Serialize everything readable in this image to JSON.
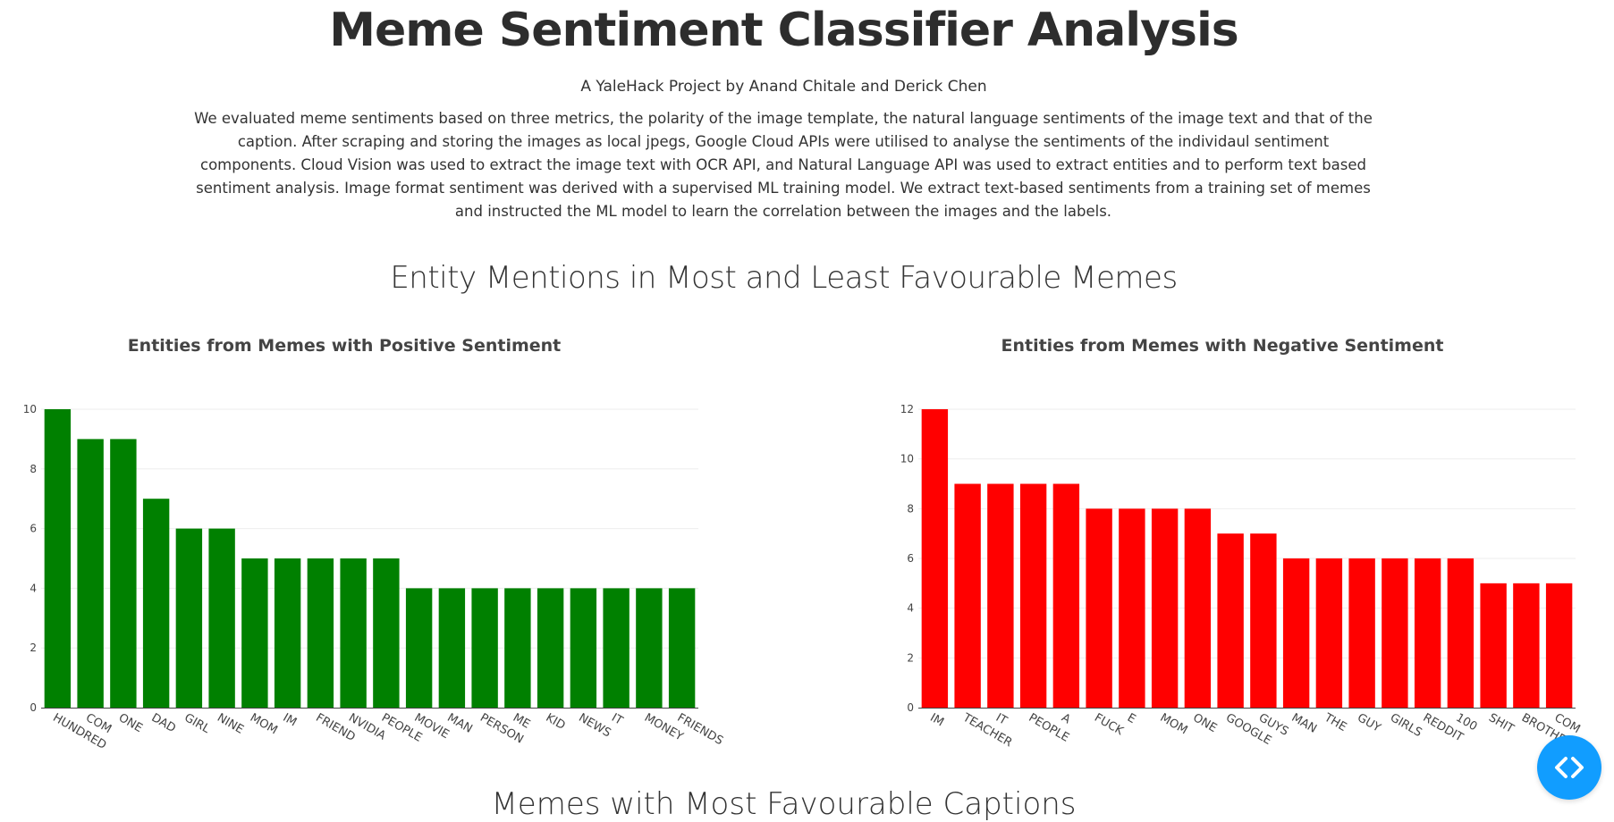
{
  "header": {
    "title": "Meme Sentiment Classifier Analysis",
    "subtitle": "A YaleHack Project by Anand Chitale and Derick Chen",
    "description": "We evaluated meme sentiments based on three metrics, the polarity of the image template, the natural language sentiments of the image text and that of the caption. After scraping and storing the images as local jpegs, Google Cloud APIs were utilised to analyse the sentiments of the individaul sentiment components. Cloud Vision was used to extract the image text with OCR API, and Natural Language API was used to extract entities and to perform text based sentiment analysis. Image format sentiment was derived with a supervised ML training model. We extract text-based sentiments from a training set of memes and instructed the ML model to learn the correlation between the images and the labels."
  },
  "section": {
    "title": "Entity Mentions in Most and Least Favourable Memes"
  },
  "next_section": {
    "title": "Memes with Most Favourable Captions"
  },
  "code_toggle": {
    "icon": "code-brackets-icon",
    "color": "#119dff"
  },
  "chart_data": [
    {
      "type": "bar",
      "title": "Entities from Memes with Positive Sentiment",
      "color": "#008000",
      "categories": [
        "HUNDRED",
        "COM",
        "ONE",
        "DAD",
        "GIRL",
        "NINE",
        "MOM",
        "IM",
        "FRIEND",
        "NVIDIA",
        "PEOPLE",
        "MOVIE",
        "MAN",
        "PERSON",
        "ME",
        "KID",
        "NEWS",
        "IT",
        "MONEY",
        "FRIENDS"
      ],
      "values": [
        10,
        9,
        9,
        7,
        6,
        6,
        5,
        5,
        5,
        5,
        5,
        4,
        4,
        4,
        4,
        4,
        4,
        4,
        4,
        4
      ],
      "ylim": [
        0,
        10
      ],
      "yticks": [
        0,
        2,
        4,
        6,
        8,
        10
      ],
      "grid": true,
      "legend": "none"
    },
    {
      "type": "bar",
      "title": "Entities from Memes with Negative Sentiment",
      "color": "#ff0000",
      "categories": [
        "IM",
        "TEACHER",
        "IT",
        "PEOPLE",
        "A",
        "FUCK",
        "E",
        "MOM",
        "ONE",
        "GOOGLE",
        "GUYS",
        "MAN",
        "THE",
        "GUY",
        "GIRLS",
        "REDDIT",
        "100",
        "SHIT",
        "BROTHER",
        "COM"
      ],
      "values": [
        12,
        9,
        9,
        9,
        9,
        8,
        8,
        8,
        8,
        7,
        7,
        6,
        6,
        6,
        6,
        6,
        6,
        5,
        5,
        5
      ],
      "ylim": [
        0,
        12
      ],
      "yticks": [
        0,
        2,
        4,
        6,
        8,
        10,
        12
      ],
      "grid": true,
      "legend": "none"
    }
  ]
}
